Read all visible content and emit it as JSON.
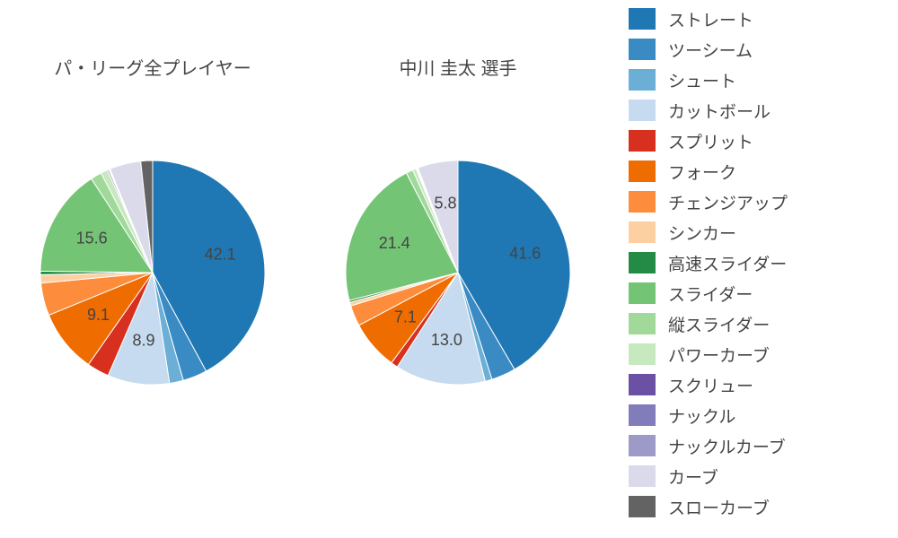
{
  "background_color": "#ffffff",
  "text_color": "#444444",
  "title_fontsize": 20,
  "label_fontsize": 18,
  "legend_fontsize": 19,
  "legend": [
    {
      "label": "ストレート",
      "color": "#1f77b4"
    },
    {
      "label": "ツーシーム",
      "color": "#3a8ac4"
    },
    {
      "label": "シュート",
      "color": "#6baed6"
    },
    {
      "label": "カットボール",
      "color": "#c6dbef"
    },
    {
      "label": "スプリット",
      "color": "#d7301f"
    },
    {
      "label": "フォーク",
      "color": "#ef6c00"
    },
    {
      "label": "チェンジアップ",
      "color": "#fd8d3c"
    },
    {
      "label": "シンカー",
      "color": "#fdd0a2"
    },
    {
      "label": "高速スライダー",
      "color": "#238b45"
    },
    {
      "label": "スライダー",
      "color": "#74c476"
    },
    {
      "label": "縦スライダー",
      "color": "#a1d99b"
    },
    {
      "label": "パワーカーブ",
      "color": "#c7e9c0"
    },
    {
      "label": "スクリュー",
      "color": "#6a51a3"
    },
    {
      "label": "ナックル",
      "color": "#807dba"
    },
    {
      "label": "ナックルカーブ",
      "color": "#9e9ac8"
    },
    {
      "label": "カーブ",
      "color": "#dadaeb"
    },
    {
      "label": "スローカーブ",
      "color": "#636363"
    }
  ],
  "charts": [
    {
      "title": "パ・リーグ全プレイヤー",
      "type": "pie",
      "radius": 125,
      "start_angle_deg": 90,
      "direction": "clockwise",
      "label_threshold": 5.0,
      "label_offset_ratio": 0.62,
      "slices": [
        {
          "value": 42.1,
          "color": "#1f77b4",
          "label": "42.1"
        },
        {
          "value": 3.5,
          "color": "#3a8ac4"
        },
        {
          "value": 2.0,
          "color": "#6baed6"
        },
        {
          "value": 8.9,
          "color": "#c6dbef",
          "label": "8.9"
        },
        {
          "value": 3.2,
          "color": "#d7301f"
        },
        {
          "value": 9.1,
          "color": "#ef6c00",
          "label": "9.1"
        },
        {
          "value": 4.7,
          "color": "#fd8d3c"
        },
        {
          "value": 1.2,
          "color": "#fdd0a2"
        },
        {
          "value": 0.5,
          "color": "#238b45"
        },
        {
          "value": 15.6,
          "color": "#74c476",
          "label": "15.6"
        },
        {
          "value": 1.6,
          "color": "#a1d99b"
        },
        {
          "value": 1.0,
          "color": "#c7e9c0"
        },
        {
          "value": 0.2,
          "color": "#6a51a3"
        },
        {
          "value": 0.1,
          "color": "#807dba"
        },
        {
          "value": 0.1,
          "color": "#9e9ac8"
        },
        {
          "value": 4.5,
          "color": "#dadaeb"
        },
        {
          "value": 1.7,
          "color": "#636363"
        }
      ]
    },
    {
      "title": "中川 圭太  選手",
      "type": "pie",
      "radius": 125,
      "start_angle_deg": 90,
      "direction": "clockwise",
      "label_threshold": 5.0,
      "label_offset_ratio": 0.62,
      "slices": [
        {
          "value": 41.6,
          "color": "#1f77b4",
          "label": "41.6"
        },
        {
          "value": 3.5,
          "color": "#3a8ac4"
        },
        {
          "value": 1.0,
          "color": "#6baed6"
        },
        {
          "value": 13.0,
          "color": "#c6dbef",
          "label": "13.0"
        },
        {
          "value": 1.0,
          "color": "#d7301f"
        },
        {
          "value": 7.1,
          "color": "#ef6c00",
          "label": "7.1"
        },
        {
          "value": 3.0,
          "color": "#fd8d3c"
        },
        {
          "value": 0.5,
          "color": "#fdd0a2"
        },
        {
          "value": 0.3,
          "color": "#238b45"
        },
        {
          "value": 21.4,
          "color": "#74c476",
          "label": "21.4"
        },
        {
          "value": 1.0,
          "color": "#a1d99b"
        },
        {
          "value": 0.5,
          "color": "#c7e9c0"
        },
        {
          "value": 0.1,
          "color": "#6a51a3"
        },
        {
          "value": 0.1,
          "color": "#807dba"
        },
        {
          "value": 0.1,
          "color": "#9e9ac8"
        },
        {
          "value": 5.8,
          "color": "#dadaeb",
          "label": "5.8"
        },
        {
          "value": 0.0,
          "color": "#636363"
        }
      ]
    }
  ]
}
